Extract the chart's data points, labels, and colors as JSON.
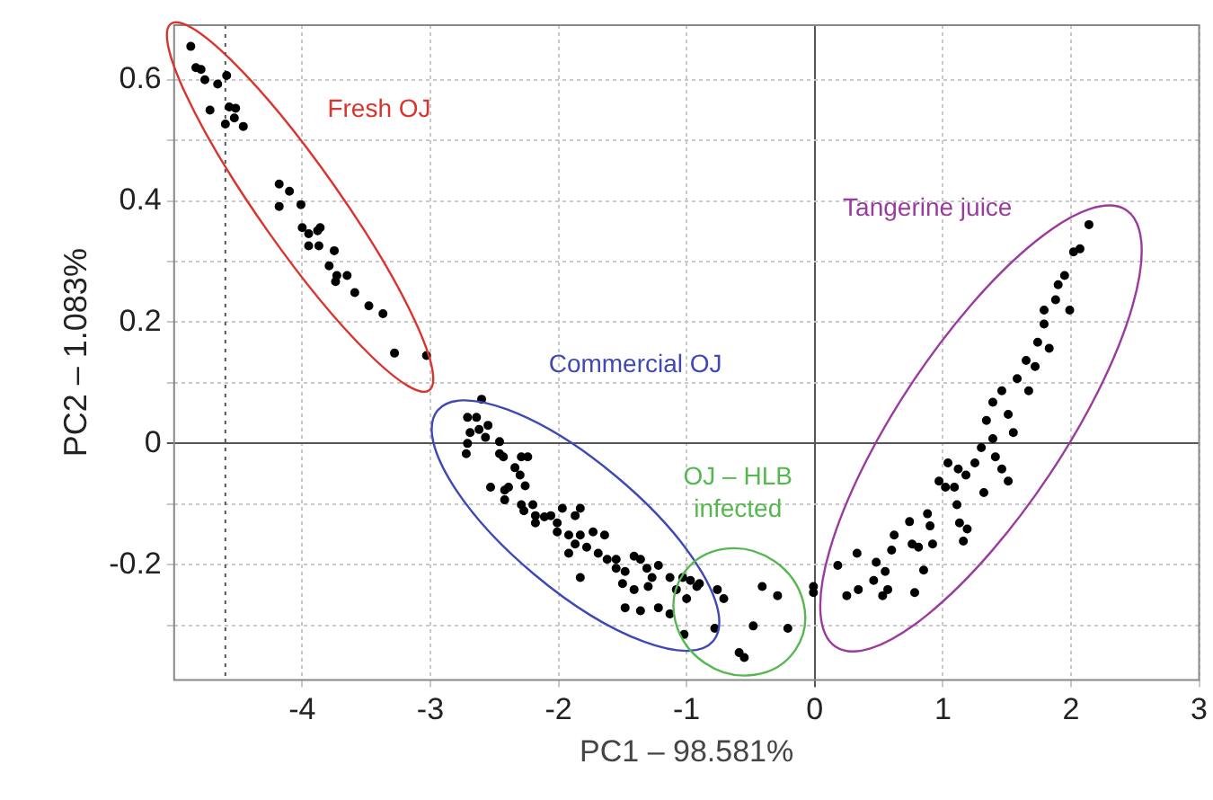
{
  "chart_data": {
    "type": "scatter",
    "xlabel": "PC1 – 98.581%",
    "ylabel": "PC2 – 1.083%",
    "xlim": [
      -5,
      3
    ],
    "xticks": [
      -4,
      -3,
      -2,
      -1,
      0,
      1,
      2,
      3
    ],
    "ylim": [
      -0.39,
      0.69
    ],
    "yticks": [
      {
        "value": -0.3,
        "label": null
      },
      -0.2,
      {
        "value": -0.1,
        "label": null
      },
      0,
      {
        "value": 0.1,
        "label": null
      },
      0.2,
      {
        "value": 0.3,
        "label": null
      },
      0.4,
      {
        "value": 0.5,
        "label": null
      },
      0.6
    ],
    "grid": true,
    "legend": false,
    "marker": "circle",
    "ref_lines": [
      {
        "axis": "x",
        "value": -4.6,
        "line_style": "dotted",
        "color": "#555555"
      }
    ],
    "annotations": [
      "Fresh OJ",
      "Commercial OJ",
      "OJ – HLB infected",
      "Tangerine juice"
    ],
    "series": [
      {
        "color": "#000000",
        "x": [
          -4.87,
          -4.83,
          -4.79,
          -4.76,
          -4.66,
          -4.59,
          -4.72,
          -4.57,
          -4.52,
          -4.6,
          -4.53,
          -4.46,
          -4.18,
          -4.1,
          -4.18,
          -4.01,
          -4,
          -3.95,
          -3.88,
          -3.86,
          -3.95,
          -3.87,
          -3.75,
          -3.79,
          -3.73,
          -3.65,
          -3.74,
          -3.59,
          -3.48,
          -3.37,
          -3.28,
          -3.03
        ],
        "values": [
          0.655,
          0.62,
          0.617,
          0.6,
          0.593,
          0.607,
          0.55,
          0.555,
          0.553,
          0.527,
          0.537,
          0.523,
          0.428,
          0.416,
          0.391,
          0.394,
          0.356,
          0.346,
          0.351,
          0.356,
          0.326,
          0.326,
          0.318,
          0.293,
          0.277,
          0.277,
          0.267,
          0.249,
          0.227,
          0.214,
          0.149,
          0.145
        ]
      },
      {
        "color": "#000000",
        "x": [
          -2.6,
          -2.71,
          -2.64,
          -2.55,
          -2.69,
          -2.62,
          -2.57,
          -2.72,
          -2.71,
          -2.46,
          -2.46,
          -2.43,
          -2.29,
          -2.24,
          -2.34,
          -2.3,
          -2.53,
          -2.42,
          -2.39,
          -2.26,
          -2.42,
          -2.29,
          -2.2,
          -2.27,
          -2.18,
          -2.11,
          -2.06,
          -1.97,
          -1.83,
          -1.87,
          -2.01,
          -2.18,
          -2.01,
          -1.92,
          -1.83,
          -1.73,
          -1.64,
          -1.87,
          -1.78,
          -1.69,
          -1.92,
          -1.62,
          -1.55,
          -1.41,
          -1.36,
          -1.55,
          -1.48,
          -1.31,
          -1.22,
          -1.27,
          -1.5,
          -1.41,
          -1.3,
          -1.13,
          -1.03,
          -0.97,
          -0.9,
          -1.08,
          -1.83,
          -1.48,
          -1.36,
          -1.22,
          -1.13,
          -1,
          -1.02
        ],
        "values": [
          0.073,
          0.043,
          0.043,
          0.03,
          0.018,
          0.023,
          0.01,
          -0.017,
          0,
          0.003,
          -0.017,
          -0.022,
          -0.022,
          -0.022,
          -0.04,
          -0.052,
          -0.072,
          -0.077,
          -0.072,
          -0.07,
          -0.093,
          -0.101,
          -0.101,
          -0.111,
          -0.119,
          -0.121,
          -0.119,
          -0.107,
          -0.107,
          -0.119,
          -0.131,
          -0.131,
          -0.146,
          -0.151,
          -0.151,
          -0.146,
          -0.151,
          -0.166,
          -0.171,
          -0.181,
          -0.181,
          -0.191,
          -0.191,
          -0.186,
          -0.191,
          -0.206,
          -0.211,
          -0.206,
          -0.201,
          -0.221,
          -0.231,
          -0.241,
          -0.236,
          -0.221,
          -0.221,
          -0.226,
          -0.231,
          -0.241,
          -0.221,
          -0.271,
          -0.276,
          -0.271,
          -0.281,
          -0.256,
          -0.315
        ]
      },
      {
        "color": "#000000",
        "x": [
          -0.92,
          -0.76,
          -0.71,
          -0.78,
          -0.48,
          -0.41,
          -0.29,
          -0.21,
          -0.59,
          -0.55
        ],
        "values": [
          -0.236,
          -0.241,
          -0.256,
          -0.305,
          -0.301,
          -0.236,
          -0.251,
          -0.305,
          -0.345,
          -0.353
        ]
      },
      {
        "color": "#000000",
        "x": [
          -0.01,
          -0.01,
          0.18,
          0.25,
          0.34,
          0.33,
          0.48,
          0.46,
          0.55,
          0.53,
          0.57,
          0.6,
          0.62,
          0.74,
          0.76,
          0.78,
          0.81,
          0.85,
          0.88,
          0.9,
          0.92,
          0.97,
          1.04,
          1.02,
          1.09,
          1.11,
          1.13,
          1.16,
          1.19,
          1.12,
          1.18,
          1.25,
          1.32,
          1.3,
          1.34,
          1.39,
          1.41,
          1.46,
          1.51,
          1.39,
          1.46,
          1.51,
          1.55,
          1.58,
          1.65,
          1.67,
          1.72,
          1.74,
          1.79,
          1.83,
          1.79,
          1.88,
          1.9,
          1.95,
          1.99,
          2.02,
          2.07,
          2.14
        ],
        "values": [
          -0.236,
          -0.246,
          -0.201,
          -0.251,
          -0.241,
          -0.181,
          -0.196,
          -0.226,
          -0.211,
          -0.251,
          -0.241,
          -0.176,
          -0.151,
          -0.129,
          -0.166,
          -0.246,
          -0.171,
          -0.209,
          -0.116,
          -0.136,
          -0.166,
          -0.062,
          -0.032,
          -0.072,
          -0.072,
          -0.101,
          -0.131,
          -0.161,
          -0.141,
          -0.042,
          -0.052,
          -0.032,
          -0.081,
          -0.007,
          0.038,
          0.008,
          -0.022,
          -0.042,
          -0.062,
          0.068,
          0.087,
          0.048,
          0.018,
          0.107,
          0.137,
          0.087,
          0.127,
          0.167,
          0.197,
          0.157,
          0.22,
          0.237,
          0.262,
          0.277,
          0.22,
          0.316,
          0.321,
          0.361
        ]
      }
    ]
  }
}
